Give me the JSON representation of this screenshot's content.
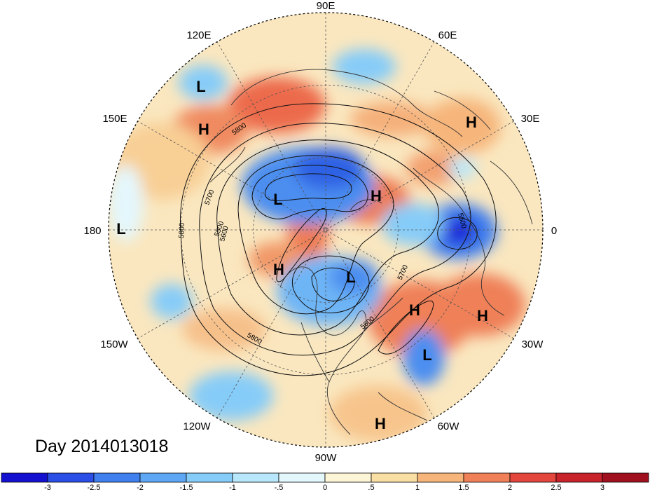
{
  "title": "Day 2014013018",
  "longitude_labels": [
    "90E",
    "60E",
    "30E",
    "0",
    "30W",
    "60W",
    "90W",
    "120W",
    "150W",
    "180",
    "150E",
    "120E"
  ],
  "pressure_systems": [
    {
      "type": "L"
    },
    {
      "type": "H"
    },
    {
      "type": "L"
    },
    {
      "type": "H"
    },
    {
      "type": "H"
    },
    {
      "type": "L"
    },
    {
      "type": "H"
    },
    {
      "type": "L"
    },
    {
      "type": "H"
    },
    {
      "type": "H"
    },
    {
      "type": "L"
    },
    {
      "type": "H"
    }
  ],
  "contour_labels": [
    "5800",
    "5700",
    "5500",
    "5800",
    "5600",
    "5700",
    "5800",
    "5600",
    "5500"
  ],
  "colorbar": {
    "ticks": [
      "-3",
      "-2.5",
      "-2",
      "-1.5",
      "-1",
      "-.5",
      "0",
      ".5",
      "1",
      "1.5",
      "2",
      "2.5",
      "3"
    ],
    "colors": [
      "#1410d0",
      "#2a4ee6",
      "#3f7fee",
      "#5ea7f4",
      "#86ccf8",
      "#b8e7fb",
      "#e4f7fd",
      "#fdf6d6",
      "#fadfa4",
      "#f6b57a",
      "#ef8058",
      "#e2463c",
      "#c8222b",
      "#a0101e"
    ]
  }
}
